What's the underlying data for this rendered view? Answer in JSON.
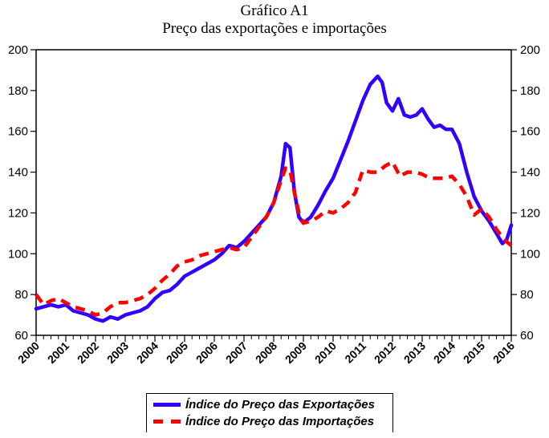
{
  "chart_data": {
    "type": "line",
    "title": "Gráfico A1",
    "subtitle": "Preço das exportações e importações",
    "xlabel": "",
    "ylabel": "",
    "xlim": [
      2000,
      2016
    ],
    "ylim": [
      60,
      200
    ],
    "y_ticks": [
      60,
      80,
      100,
      120,
      140,
      160,
      180,
      200
    ],
    "x_tick_labels": [
      "2000",
      "2001",
      "2002",
      "2003",
      "2004",
      "2005",
      "2006",
      "2007",
      "2008",
      "2009",
      "2010",
      "2011",
      "2012",
      "2013",
      "2014",
      "2015",
      "2016"
    ],
    "grid": false,
    "dual_y_axis": true,
    "legend_position": "bottom",
    "series": [
      {
        "name": "Índice do Preço das Exportações",
        "color": "#3300ff",
        "style": "solid",
        "x": [
          2000.0,
          2000.25,
          2000.5,
          2000.75,
          2001.0,
          2001.25,
          2001.5,
          2001.75,
          2002.0,
          2002.25,
          2002.5,
          2002.75,
          2003.0,
          2003.25,
          2003.5,
          2003.75,
          2004.0,
          2004.25,
          2004.5,
          2004.75,
          2005.0,
          2005.25,
          2005.5,
          2005.75,
          2006.0,
          2006.25,
          2006.5,
          2006.75,
          2007.0,
          2007.25,
          2007.5,
          2007.75,
          2008.0,
          2008.25,
          2008.4,
          2008.55,
          2008.7,
          2008.85,
          2009.0,
          2009.25,
          2009.5,
          2009.75,
          2010.0,
          2010.25,
          2010.5,
          2010.75,
          2011.0,
          2011.25,
          2011.5,
          2011.65,
          2011.8,
          2012.0,
          2012.2,
          2012.4,
          2012.6,
          2012.8,
          2013.0,
          2013.2,
          2013.4,
          2013.6,
          2013.8,
          2014.0,
          2014.25,
          2014.5,
          2014.75,
          2015.0,
          2015.25,
          2015.5,
          2015.7,
          2015.85,
          2016.0
        ],
        "values": [
          73,
          74,
          75,
          74,
          75,
          72,
          71,
          70,
          68,
          67,
          69,
          68,
          70,
          71,
          72,
          74,
          78,
          81,
          82,
          85,
          89,
          91,
          93,
          95,
          97,
          100,
          104,
          103,
          106,
          110,
          114,
          118,
          125,
          138,
          154,
          152,
          130,
          118,
          115,
          118,
          124,
          131,
          137,
          146,
          155,
          165,
          175,
          183,
          187,
          184,
          174,
          170,
          176,
          168,
          167,
          168,
          171,
          166,
          162,
          163,
          161,
          161,
          154,
          140,
          128,
          121,
          116,
          110,
          105,
          107,
          114
        ]
      },
      {
        "name": "Índice do Preço das Importações",
        "color": "#ff0000",
        "style": "dashed",
        "x": [
          2000.0,
          2000.25,
          2000.5,
          2000.75,
          2001.0,
          2001.25,
          2001.5,
          2001.75,
          2002.0,
          2002.25,
          2002.5,
          2002.75,
          2003.0,
          2003.25,
          2003.5,
          2003.75,
          2004.0,
          2004.25,
          2004.5,
          2004.75,
          2005.0,
          2005.25,
          2005.5,
          2005.75,
          2006.0,
          2006.25,
          2006.5,
          2006.75,
          2007.0,
          2007.25,
          2007.5,
          2007.75,
          2008.0,
          2008.25,
          2008.4,
          2008.55,
          2008.7,
          2008.85,
          2009.0,
          2009.25,
          2009.5,
          2009.75,
          2010.0,
          2010.25,
          2010.5,
          2010.75,
          2011.0,
          2011.25,
          2011.5,
          2011.75,
          2012.0,
          2012.25,
          2012.5,
          2012.75,
          2013.0,
          2013.25,
          2013.5,
          2013.75,
          2014.0,
          2014.25,
          2014.5,
          2014.75,
          2015.0,
          2015.25,
          2015.5,
          2015.75,
          2016.0
        ],
        "values": [
          80,
          75,
          77,
          78,
          76,
          74,
          73,
          72,
          70,
          71,
          74,
          76,
          76,
          77,
          78,
          80,
          83,
          87,
          90,
          94,
          96,
          97,
          99,
          100,
          101,
          102,
          103,
          102,
          103,
          108,
          113,
          118,
          125,
          136,
          142,
          141,
          130,
          120,
          115,
          116,
          118,
          121,
          120,
          122,
          125,
          130,
          141,
          140,
          140,
          143,
          145,
          138,
          140,
          140,
          139,
          137,
          137,
          137,
          138,
          134,
          128,
          119,
          122,
          118,
          112,
          107,
          104
        ]
      }
    ]
  },
  "legend": {
    "items": [
      {
        "label": "Índice do Preço das Exportações",
        "color": "#3300ff"
      },
      {
        "label": "Índice do Preço das Importações",
        "color": "#ff0000"
      }
    ]
  }
}
